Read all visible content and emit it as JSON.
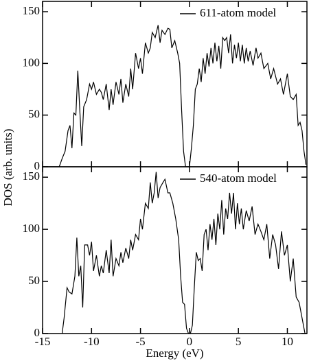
{
  "chart_data": [
    {
      "type": "line",
      "ylabel": "DOS (arb. units)",
      "x": [
        -15,
        -13.3,
        -13,
        -12.7,
        -12.4,
        -12.2,
        -12,
        -11.8,
        -11.6,
        -11.4,
        -11.2,
        -11,
        -10.8,
        -10.5,
        -10.2,
        -10,
        -9.8,
        -9.5,
        -9.2,
        -9,
        -8.8,
        -8.5,
        -8.2,
        -8,
        -7.8,
        -7.5,
        -7.2,
        -7,
        -6.8,
        -6.5,
        -6.2,
        -6,
        -5.8,
        -5.5,
        -5.2,
        -5,
        -4.8,
        -4.5,
        -4.2,
        -4,
        -3.8,
        -3.5,
        -3.2,
        -3,
        -2.8,
        -2.5,
        -2.2,
        -2,
        -1.8,
        -1.5,
        -1.2,
        -1,
        -0.8,
        -0.6,
        -0.4,
        -0.2,
        0,
        0.2,
        0.4,
        0.6,
        0.8,
        1,
        1.2,
        1.4,
        1.6,
        1.8,
        2,
        2.2,
        2.4,
        2.6,
        2.8,
        3,
        3.2,
        3.4,
        3.6,
        3.8,
        4,
        4.2,
        4.4,
        4.6,
        4.8,
        5,
        5.2,
        5.4,
        5.6,
        5.8,
        6,
        6.2,
        6.5,
        6.8,
        7,
        7.3,
        7.6,
        8,
        8.3,
        8.6,
        9,
        9.3,
        9.6,
        10,
        10.3,
        10.6,
        10.9,
        11.1,
        11.3,
        11.5,
        11.7,
        11.9
      ],
      "series": [
        {
          "name": "611-atom model",
          "color": "#000000",
          "values": [
            0,
            0,
            8,
            15,
            35,
            40,
            18,
            52,
            50,
            93,
            55,
            20,
            58,
            65,
            80,
            75,
            82,
            70,
            75,
            72,
            65,
            80,
            55,
            75,
            60,
            82,
            70,
            85,
            62,
            80,
            68,
            95,
            75,
            110,
            95,
            105,
            90,
            120,
            110,
            115,
            130,
            125,
            137,
            120,
            132,
            128,
            134,
            133,
            115,
            122,
            110,
            100,
            55,
            15,
            0,
            0,
            0,
            18,
            40,
            75,
            80,
            95,
            82,
            105,
            90,
            110,
            97,
            115,
            100,
            120,
            102,
            117,
            95,
            125,
            122,
            125,
            110,
            128,
            100,
            118,
            105,
            120,
            102,
            118,
            100,
            115,
            102,
            112,
            98,
            115,
            105,
            110,
            95,
            100,
            85,
            95,
            80,
            85,
            70,
            90,
            68,
            65,
            70,
            40,
            43,
            35,
            15,
            2
          ]
        }
      ],
      "xlim": [
        -15,
        12
      ],
      "xticks": [
        -15,
        -10,
        -5,
        0,
        5,
        10
      ],
      "ylim": [
        0,
        160
      ],
      "yticks": [
        0,
        50,
        100,
        150
      ],
      "legend": "upper right"
    },
    {
      "type": "line",
      "xlabel": "Energy (eV)",
      "x": [
        -13,
        -12.8,
        -12.5,
        -12.3,
        -12,
        -11.7,
        -11.5,
        -11.3,
        -11.1,
        -10.9,
        -10.7,
        -10.4,
        -10.2,
        -10,
        -9.8,
        -9.5,
        -9.2,
        -9,
        -8.8,
        -8.5,
        -8.2,
        -8,
        -7.8,
        -7.5,
        -7.2,
        -7,
        -6.8,
        -6.5,
        -6.2,
        -6,
        -5.8,
        -5.5,
        -5.2,
        -5,
        -4.8,
        -4.5,
        -4.2,
        -4,
        -3.8,
        -3.6,
        -3.4,
        -3.2,
        -3,
        -2.7,
        -2.5,
        -2.2,
        -2,
        -1.7,
        -1.4,
        -1.1,
        -0.9,
        -0.7,
        -0.5,
        -0.3,
        -0.1,
        0.1,
        0.3,
        0.5,
        0.7,
        0.9,
        1.1,
        1.3,
        1.5,
        1.7,
        1.9,
        2.1,
        2.3,
        2.5,
        2.7,
        2.9,
        3.1,
        3.3,
        3.5,
        3.7,
        3.9,
        4.1,
        4.3,
        4.5,
        4.7,
        4.9,
        5.1,
        5.3,
        5.5,
        5.8,
        6.1,
        6.4,
        6.7,
        7,
        7.3,
        7.6,
        7.9,
        8.2,
        8.5,
        8.8,
        9.1,
        9.4,
        9.7,
        10,
        10.3,
        10.6,
        10.9,
        11.2,
        11.5,
        11.8
      ],
      "series": [
        {
          "name": "540-atom model",
          "color": "#000000",
          "values": [
            0,
            15,
            44,
            40,
            38,
            55,
            92,
            55,
            65,
            25,
            85,
            85,
            75,
            88,
            60,
            75,
            55,
            65,
            58,
            80,
            58,
            90,
            55,
            72,
            65,
            78,
            68,
            82,
            72,
            90,
            80,
            95,
            90,
            110,
            100,
            125,
            120,
            145,
            125,
            135,
            155,
            130,
            140,
            145,
            148,
            135,
            135,
            125,
            110,
            90,
            55,
            30,
            28,
            5,
            0,
            0,
            8,
            45,
            78,
            70,
            72,
            60,
            95,
            100,
            80,
            105,
            90,
            110,
            85,
            115,
            100,
            128,
            95,
            120,
            110,
            135,
            115,
            135,
            100,
            125,
            105,
            120,
            100,
            118,
            108,
            122,
            95,
            105,
            98,
            90,
            105,
            72,
            95,
            85,
            62,
            98,
            75,
            85,
            50,
            72,
            35,
            30,
            15,
            0
          ]
        }
      ],
      "xlim": [
        -15,
        12
      ],
      "xticks": [
        -15,
        -10,
        -5,
        0,
        5,
        10
      ],
      "ylim": [
        0,
        160
      ],
      "yticks": [
        0,
        50,
        100,
        150
      ],
      "legend": "upper right"
    }
  ]
}
